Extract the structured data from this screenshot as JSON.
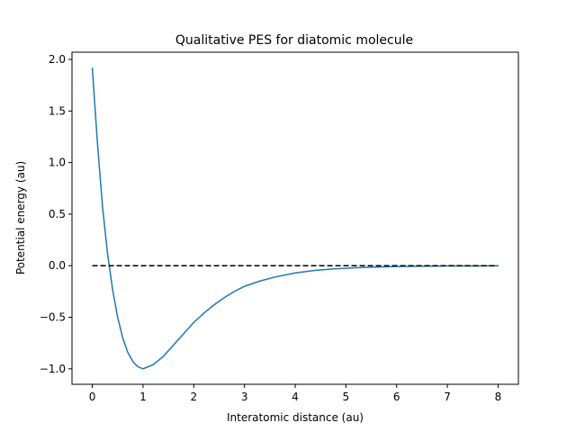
{
  "chart_data": {
    "type": "line",
    "title": "Qualitative PES for diatomic molecule",
    "xlabel": "Interatomic distance (au)",
    "ylabel": "Potential energy (au)",
    "xlim": [
      -0.4,
      8.4
    ],
    "ylim": [
      -1.15,
      2.07
    ],
    "xticks": [
      0,
      1,
      2,
      3,
      4,
      5,
      6,
      7,
      8
    ],
    "xtick_labels": [
      "0",
      "1",
      "2",
      "3",
      "4",
      "5",
      "6",
      "7",
      "8"
    ],
    "yticks": [
      -1.0,
      -0.5,
      0.0,
      0.5,
      1.0,
      1.5,
      2.0
    ],
    "ytick_labels": [
      "−1.0",
      "−0.5",
      "0.0",
      "0.5",
      "1.0",
      "1.5",
      "2.0"
    ],
    "grid": false,
    "series": [
      {
        "style": "solid",
        "color": "#1f77b4",
        "x": [
          0.0,
          0.1,
          0.2,
          0.3,
          0.4,
          0.5,
          0.6,
          0.7,
          0.8,
          0.9,
          1.0,
          1.2,
          1.4,
          1.6,
          1.8,
          2.0,
          2.2,
          2.4,
          2.6,
          2.8,
          3.0,
          3.3,
          3.6,
          4.0,
          4.4,
          4.8,
          5.2,
          5.6,
          6.0,
          6.5,
          7.0,
          7.5,
          8.0
        ],
        "y": [
          1.92,
          1.2,
          0.58,
          0.12,
          -0.23,
          -0.5,
          -0.7,
          -0.84,
          -0.93,
          -0.98,
          -1.0,
          -0.96,
          -0.88,
          -0.77,
          -0.66,
          -0.55,
          -0.46,
          -0.38,
          -0.31,
          -0.25,
          -0.2,
          -0.15,
          -0.11,
          -0.07,
          -0.045,
          -0.03,
          -0.02,
          -0.013,
          -0.008,
          -0.005,
          -0.003,
          -0.002,
          -0.001
        ]
      },
      {
        "style": "dashed",
        "color": "#000000",
        "x": [
          0,
          8
        ],
        "y": [
          0,
          0
        ]
      }
    ]
  }
}
